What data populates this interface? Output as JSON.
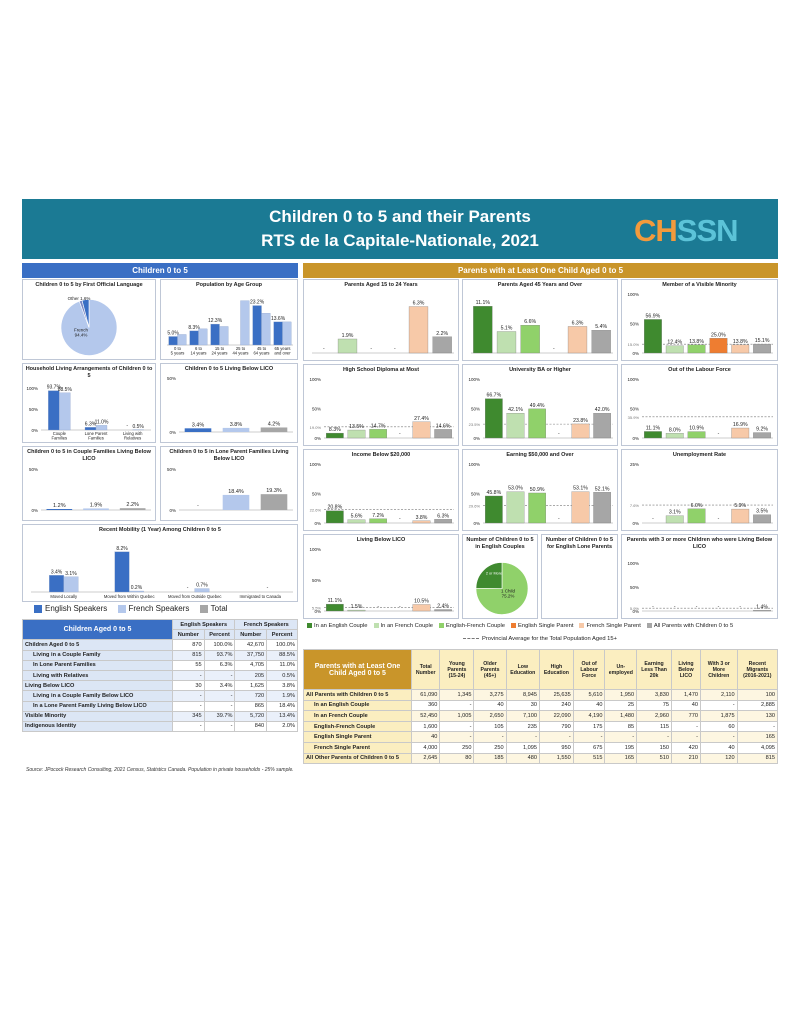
{
  "title": "Children 0 to 5 and their Parents",
  "subtitle": "RTS de la Capitale-Nationale, 2021",
  "logo": {
    "a": "CH",
    "b": "SSN"
  },
  "left_header": "Children 0 to 5",
  "right_header": "Parents with at Least One Child Aged 0 to 5",
  "legend_left": [
    "English Speakers",
    "French Speakers",
    "Total"
  ],
  "legend_right": [
    "In an English Couple",
    "In an French Couple",
    "English-French Couple",
    "English Single Parent",
    "French Single Parent",
    "All Parents with Children 0 to 5"
  ],
  "legend_right_avg": "Provincial Average for the Total Population Aged 15+",
  "colors": {
    "english": "#3a6fc4",
    "french": "#b4c8ec",
    "total": "#a6a6a6",
    "en_couple": "#3f8a2f",
    "fr_couple": "#bfe0b0",
    "ef_couple": "#90d16a",
    "en_single": "#ee7d31",
    "fr_single": "#f7c9a8",
    "all": "#a6a6a6"
  },
  "chart_data": [
    {
      "id": "language",
      "type": "pie",
      "title": "Children 0 to 5 by First Official Language",
      "slices": [
        {
          "label": "French",
          "value": 94.4
        },
        {
          "label": "Other",
          "value": 1.6
        },
        {
          "label": "English",
          "value": 4.0
        }
      ],
      "labels": {
        "french": "French",
        "french_pct": "94.4%",
        "other": "Other 1.6%"
      }
    },
    {
      "id": "age",
      "type": "bar",
      "title": "Population by Age Group",
      "categories": [
        "0 to 5 years",
        "6 to 14 years",
        "15 to 24 years",
        "25 to 44 years",
        "45 to 64 years",
        "65 years and over"
      ],
      "series": [
        {
          "name": "English Speakers",
          "values": [
            5.0,
            8.3,
            12.3,
            null,
            23.2,
            13.6
          ]
        },
        {
          "name": "French Speakers",
          "values": [
            6.2,
            9.5,
            10.9,
            26.1,
            18.7,
            13.6
          ]
        }
      ],
      "value_labels": [
        "5.0%",
        "8.3%",
        "12.3%",
        "",
        "23.2%",
        "13.6%"
      ]
    },
    {
      "id": "household",
      "type": "bar",
      "title": "Household Living Arrangements of Children 0 to 5",
      "categories": [
        "Couple Families",
        "Lone Parent Families",
        "Living with Relatives"
      ],
      "series": [
        {
          "name": "English Speakers",
          "values": [
            93.7,
            6.3,
            null
          ]
        },
        {
          "name": "French Speakers",
          "values": [
            88.5,
            11.0,
            0.5
          ]
        }
      ],
      "ylim": [
        0,
        100
      ],
      "ticks": [
        "100%",
        "50%",
        "0%"
      ]
    },
    {
      "id": "licoBelow",
      "type": "bar",
      "title": "Children 0 to 5 Living Below LICO",
      "categories": [
        "English",
        "French",
        "Total"
      ],
      "values": [
        3.4,
        3.8,
        4.2
      ],
      "ylim": [
        0,
        50
      ],
      "ticks": [
        "50%",
        "0%"
      ]
    },
    {
      "id": "coupleLico",
      "type": "bar",
      "title": "Children 0 to 5 in Couple Families Living Below LICO",
      "categories": [
        "English",
        "French",
        "Total"
      ],
      "values": [
        1.2,
        1.9,
        2.2
      ],
      "ylim": [
        0,
        50
      ],
      "ticks": [
        "50%",
        "0%"
      ]
    },
    {
      "id": "loneLico",
      "type": "bar",
      "title": "Children 0 to 5 in Lone Parent Families Living Below LICO",
      "categories": [
        "English",
        "French",
        "Total"
      ],
      "values": [
        null,
        18.4,
        19.3
      ],
      "ylim": [
        0,
        50
      ],
      "ticks": [
        "50%",
        "0%"
      ]
    },
    {
      "id": "mobility",
      "type": "bar",
      "title": "Recent Mobility (1 Year) Among Children 0 to 5",
      "categories": [
        "Moved Locally",
        "Moved from Within Quebec",
        "Moved from Outside Quebec",
        "Immigrated to Canada"
      ],
      "series": [
        {
          "name": "English Speakers",
          "values": [
            3.4,
            8.2,
            null,
            null
          ]
        },
        {
          "name": "French Speakers",
          "values": [
            3.1,
            0.2,
            0.7,
            null
          ]
        }
      ],
      "value_labels": [
        [
          "3.4%",
          "8.2%",
          "-",
          ""
        ],
        [
          "3.1%",
          "0.2%",
          "0.7%",
          "-"
        ]
      ]
    },
    {
      "id": "p15_24",
      "type": "bar",
      "title": "Parents Aged 15 to 24 Years",
      "values": [
        null,
        1.9,
        null,
        null,
        6.3,
        2.2
      ]
    },
    {
      "id": "p45",
      "type": "bar",
      "title": "Parents Aged 45 Years and Over",
      "values": [
        11.1,
        5.1,
        6.6,
        null,
        6.3,
        5.4
      ]
    },
    {
      "id": "vismin",
      "type": "bar",
      "title": "Member of a Visible Minority",
      "values": [
        56.9,
        12.4,
        13.8,
        25.0,
        13.8,
        15.1
      ],
      "avg": "15.0%",
      "ticks": [
        "100%",
        "50%",
        "0%"
      ]
    },
    {
      "id": "hsdip",
      "type": "bar",
      "title": "High School Diploma at Most",
      "values": [
        8.3,
        13.5,
        14.7,
        null,
        27.4,
        14.6
      ],
      "avg": "19.0%",
      "ticks": [
        "100%",
        "50%",
        "0%"
      ]
    },
    {
      "id": "univ",
      "type": "bar",
      "title": "University BA or Higher",
      "values": [
        66.7,
        42.1,
        49.4,
        null,
        23.8,
        42.0
      ],
      "avg": "23.5%",
      "ticks": [
        "100%",
        "50%",
        "0%"
      ]
    },
    {
      "id": "olf",
      "type": "bar",
      "title": "Out of the Labour Force",
      "values": [
        11.1,
        8.0,
        10.9,
        null,
        16.9,
        9.2
      ],
      "avg": "35.9%",
      "ticks": [
        "100%",
        "50%",
        "0%"
      ]
    },
    {
      "id": "inc20",
      "type": "bar",
      "title": "Income Below $20,000",
      "values": [
        20.8,
        5.6,
        7.2,
        null,
        3.8,
        6.3
      ],
      "avg": "22.6%",
      "ticks": [
        "100%",
        "50%",
        "0%"
      ]
    },
    {
      "id": "earn50",
      "type": "bar",
      "title": "Earning $50,000 and Over",
      "values": [
        45.8,
        53.0,
        50.9,
        null,
        53.1,
        52.1
      ],
      "avg": "29.6%",
      "ticks": [
        "100%",
        "50%",
        "0%"
      ]
    },
    {
      "id": "unemp",
      "type": "bar",
      "title": "Unemployment Rate",
      "values": [
        null,
        3.1,
        6.0,
        null,
        5.9,
        3.5
      ],
      "avg": "7.6%",
      "ticks": [
        "25%",
        "0%"
      ]
    },
    {
      "id": "pLico",
      "type": "bar",
      "title": "Living Below LICO",
      "values": [
        11.1,
        1.5,
        null,
        null,
        10.5,
        2.4
      ],
      "avg": "5.5%",
      "ticks": [
        "100%",
        "50%",
        "0%"
      ]
    },
    {
      "id": "nChildEn",
      "type": "pie",
      "title": "Number of Children 0 to 5 in English Couples",
      "slices": [
        {
          "label": "1 Child",
          "value": 75.2
        },
        {
          "label": "2 or More",
          "value": 24.8
        }
      ],
      "labels": [
        "1 Child",
        "75.2%",
        "2 or More"
      ]
    },
    {
      "id": "nChildLone",
      "type": "pie",
      "title": "Number of Children 0 to 5 for English Lone Parents",
      "slices": []
    },
    {
      "id": "three",
      "type": "bar",
      "title": "Parents with 3 or more Children who were Living Below LICO",
      "values": [
        null,
        null,
        null,
        null,
        null,
        1.4
      ],
      "avg": "5.9%",
      "ticks": [
        "100%",
        "50%",
        "0%"
      ]
    }
  ],
  "left_table": {
    "title": "Children Aged 0 to 5",
    "group_headers": [
      "English Speakers",
      "French Speakers"
    ],
    "sub_headers": [
      "Number",
      "Percent",
      "Number",
      "Percent"
    ],
    "rows": [
      {
        "label": "Children Aged 0 to 5",
        "v": [
          "870",
          "100.0%",
          "42,670",
          "100.0%"
        ]
      },
      {
        "label": "Living in a Couple Family",
        "v": [
          "815",
          "93.7%",
          "37,750",
          "88.5%"
        ]
      },
      {
        "label": "In Lone Parent Families",
        "v": [
          "55",
          "6.3%",
          "4,705",
          "11.0%"
        ]
      },
      {
        "label": "Living with Relatives",
        "v": [
          "-",
          "-",
          "205",
          "0.5%"
        ]
      },
      {
        "label": "Living Below LICO",
        "v": [
          "30",
          "3.4%",
          "1,625",
          "3.8%"
        ]
      },
      {
        "label": "Living in a Couple Family Below LICO",
        "v": [
          "-",
          "-",
          "720",
          "1.9%"
        ]
      },
      {
        "label": "In a Lone Parent Family Living Below LICO",
        "v": [
          "-",
          "-",
          "865",
          "18.4%"
        ]
      },
      {
        "label": "Visible Minority",
        "v": [
          "345",
          "39.7%",
          "5,720",
          "13.4%"
        ]
      },
      {
        "label": "Indigenous Identity",
        "v": [
          "-",
          "-",
          "840",
          "2.0%"
        ]
      }
    ]
  },
  "right_table": {
    "title": "Parents with at Least One Child Aged 0 to 5",
    "headers": [
      "Total Number",
      "Young Parents (15-24)",
      "Older Parents (45+)",
      "Low Education",
      "High Education",
      "Out of Labour Force",
      "Un-employed",
      "Earning Less Than 20k",
      "Living Below LICO",
      "With 3 or More Children",
      "Recent Migrants (2016-2021)"
    ],
    "rows": [
      {
        "label": "All Parents with Children 0 to 5",
        "v": [
          "61,090",
          "1,345",
          "3,275",
          "8,945",
          "25,635",
          "5,610",
          "1,950",
          "3,830",
          "1,470",
          "2,110",
          "100"
        ]
      },
      {
        "label": "In an English Couple",
        "v": [
          "360",
          "-",
          "40",
          "30",
          "240",
          "40",
          "25",
          "75",
          "40",
          "-",
          "2,885"
        ]
      },
      {
        "label": "In an French Couple",
        "v": [
          "52,450",
          "1,005",
          "2,650",
          "7,100",
          "22,090",
          "4,190",
          "1,480",
          "2,960",
          "770",
          "1,875",
          "130"
        ]
      },
      {
        "label": "English-French Couple",
        "v": [
          "1,600",
          "-",
          "105",
          "235",
          "790",
          "175",
          "85",
          "115",
          "-",
          "60",
          "-"
        ]
      },
      {
        "label": "English Single Parent",
        "v": [
          "40",
          "-",
          "-",
          "-",
          "-",
          "-",
          "-",
          "-",
          "-",
          "-",
          "165"
        ]
      },
      {
        "label": "French Single Parent",
        "v": [
          "4,000",
          "250",
          "250",
          "1,095",
          "950",
          "675",
          "195",
          "150",
          "420",
          "40",
          "4,095"
        ]
      },
      {
        "label": "All Other Parents of Children 0 to 5",
        "v": [
          "2,645",
          "80",
          "185",
          "480",
          "1,550",
          "515",
          "165",
          "510",
          "210",
          "120",
          "815"
        ]
      }
    ]
  },
  "source": "Source: JPocock Research Consulting, 2021 Census, Statistics Canada. Population in private households - 25% sample."
}
